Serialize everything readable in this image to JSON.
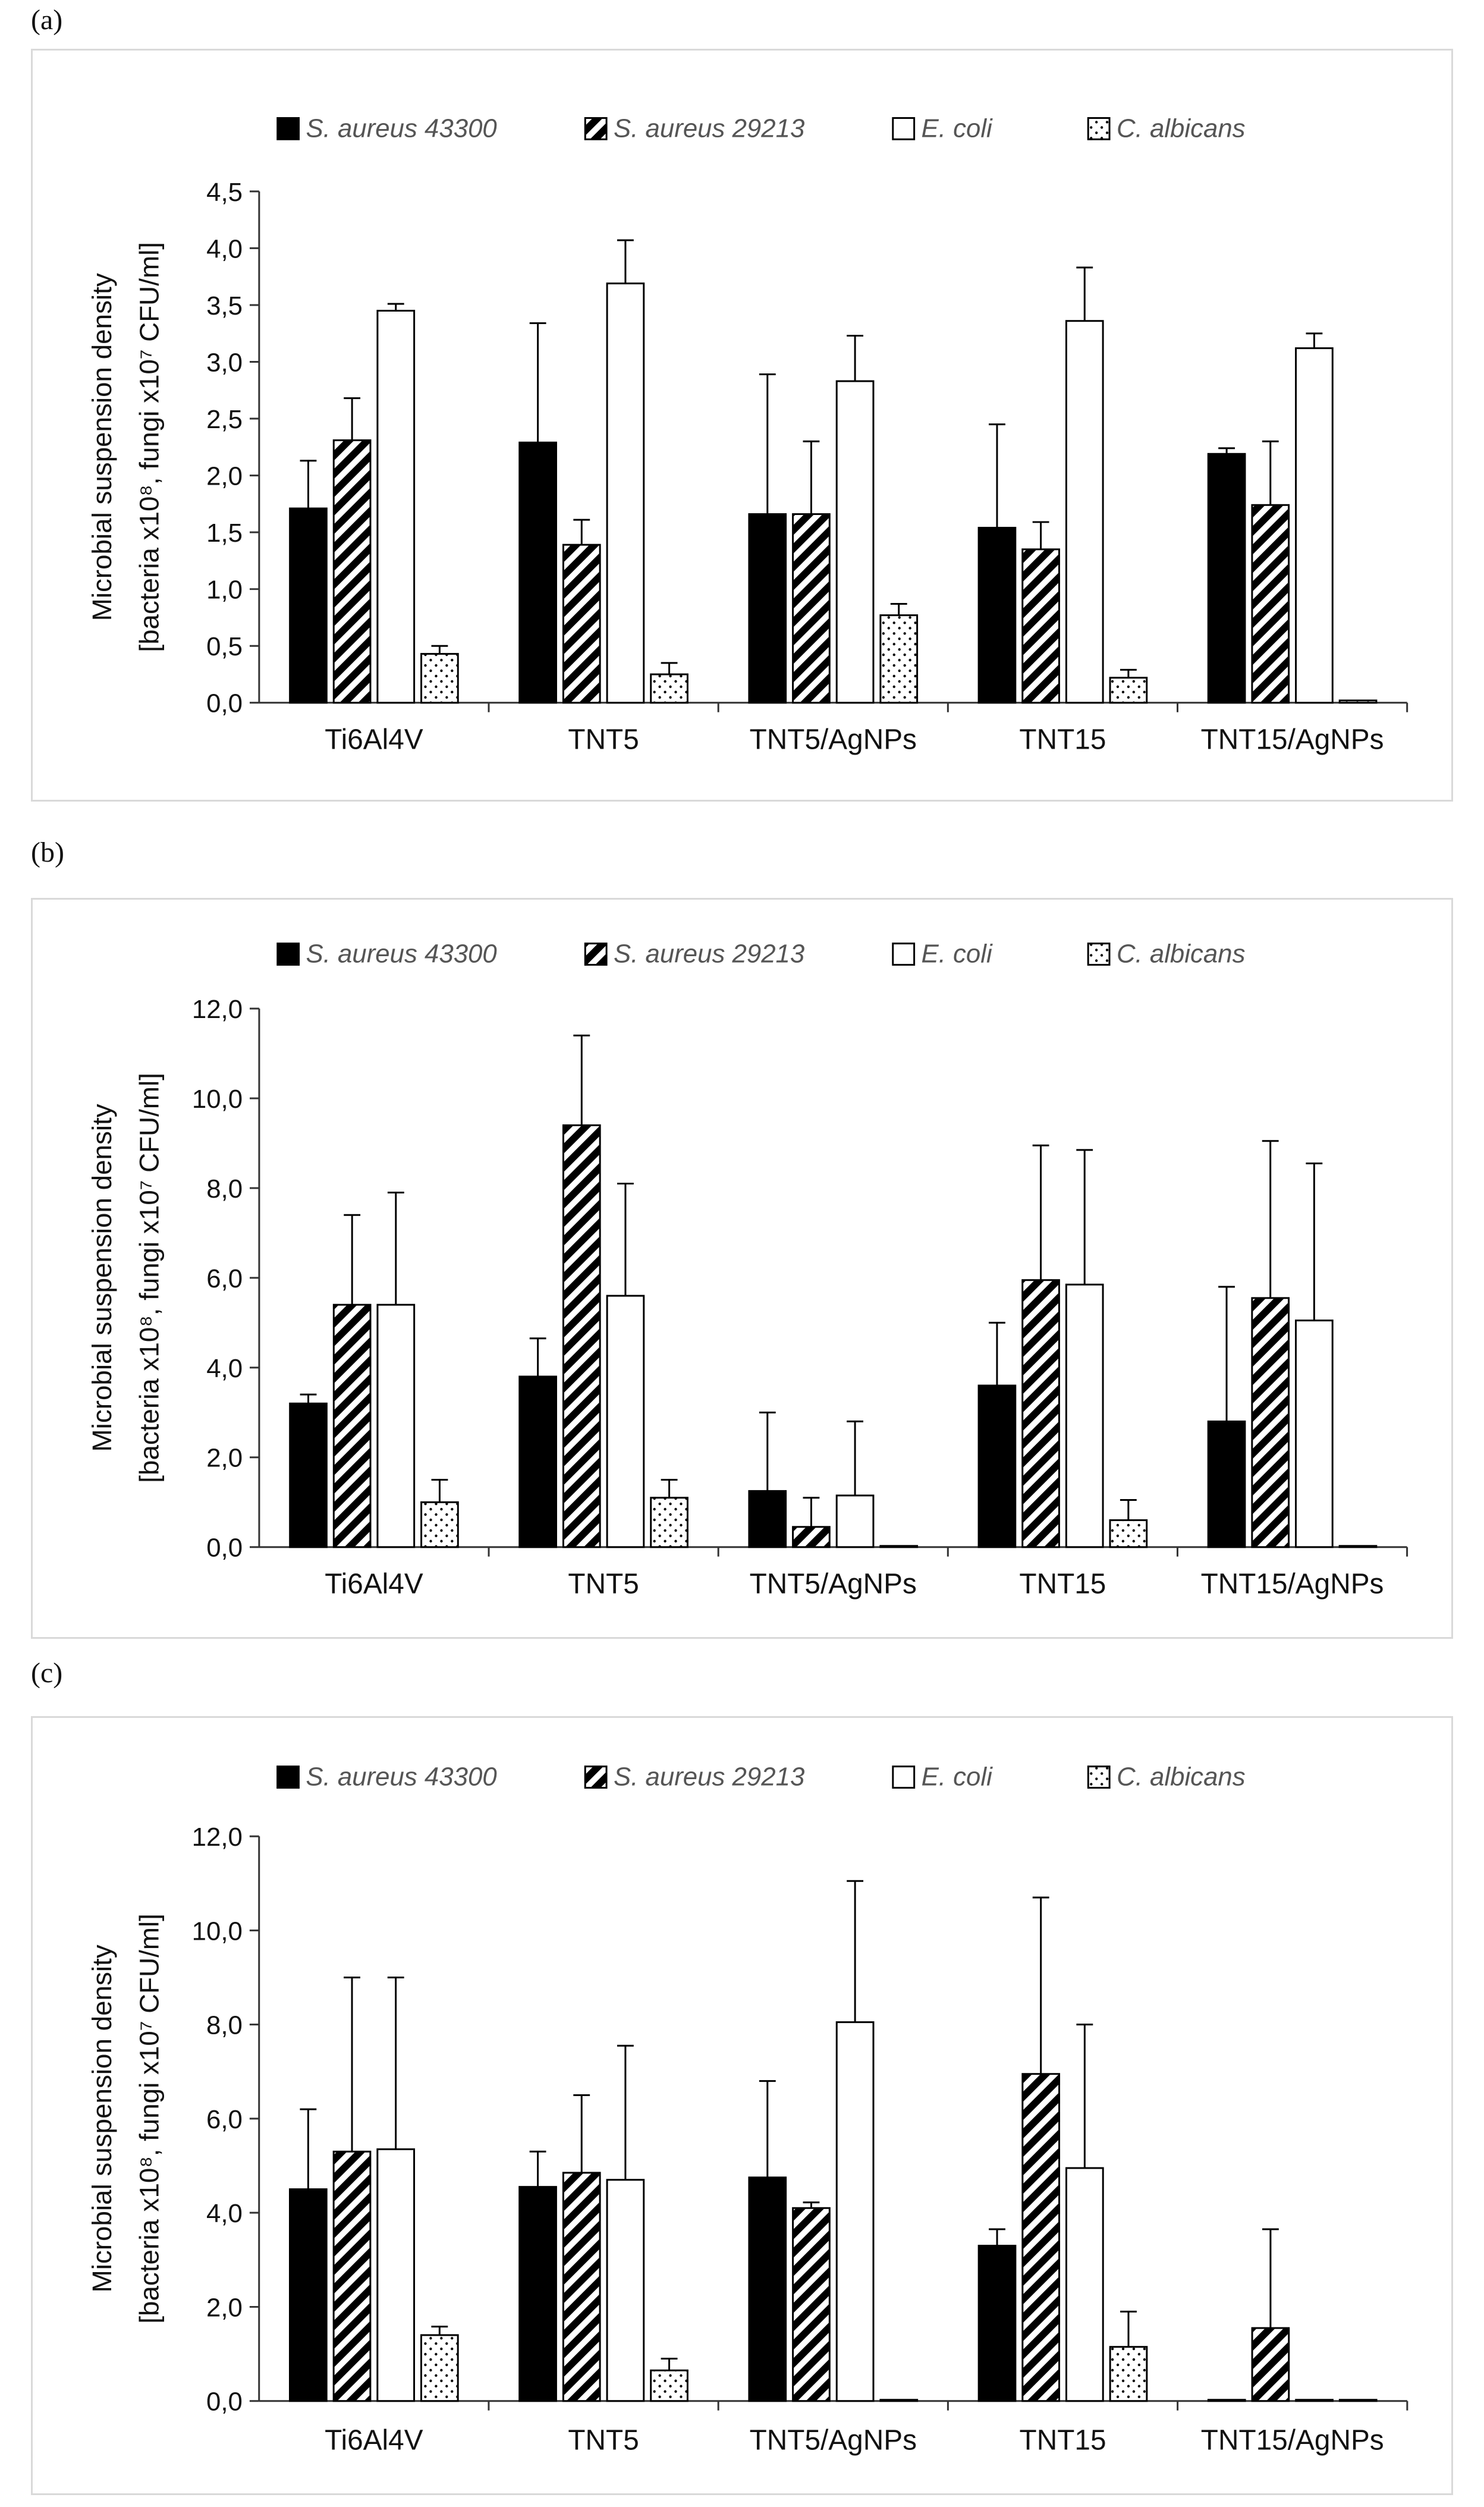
{
  "chart_data": [
    {
      "panel_label": "(a)",
      "type": "bar",
      "ylabel_line1": "Microbial suspension density",
      "ylabel_line2": "[bacteria x10⁸, fungi x10⁷ CFU/ml]",
      "ylim": [
        0,
        4.5
      ],
      "yticks": [
        "0,0",
        "0,5",
        "1,0",
        "1,5",
        "2,0",
        "2,5",
        "3,0",
        "3,5",
        "4,0",
        "4,5"
      ],
      "categories": [
        "Ti6Al4V",
        "TNT5",
        "TNT5/AgNPs",
        "TNT15",
        "TNT15/AgNPs"
      ],
      "legend_position": "top",
      "grid": false,
      "series": [
        {
          "name": "S. aureus 43300",
          "pattern": "solid-black",
          "values": [
            1.71,
            2.29,
            1.66,
            1.54,
            2.19
          ],
          "errors": [
            0.42,
            1.05,
            1.23,
            0.91,
            0.05
          ]
        },
        {
          "name": "S. aureus 29213",
          "pattern": "diagonal-stripes",
          "values": [
            2.31,
            1.39,
            1.66,
            1.35,
            1.74
          ],
          "errors": [
            0.37,
            0.22,
            0.64,
            0.24,
            0.56
          ]
        },
        {
          "name": "E. coli",
          "pattern": "white",
          "values": [
            3.45,
            3.69,
            2.83,
            3.36,
            3.12
          ],
          "errors": [
            0.06,
            0.38,
            0.4,
            0.47,
            0.13
          ]
        },
        {
          "name": "C. albicans",
          "pattern": "dots",
          "values": [
            0.43,
            0.25,
            0.77,
            0.22,
            0.02
          ],
          "errors": [
            0.07,
            0.1,
            0.1,
            0.07,
            0.0
          ]
        }
      ]
    },
    {
      "panel_label": "(b)",
      "type": "bar",
      "ylabel_line1": "Microbial suspension density",
      "ylabel_line2": "[bacteria x10⁸, fungi x10⁷ CFU/ml]",
      "ylim": [
        0,
        12
      ],
      "yticks": [
        "0,0",
        "2,0",
        "4,0",
        "6,0",
        "8,0",
        "10,0",
        "12,0"
      ],
      "categories": [
        "Ti6Al4V",
        "TNT5",
        "TNT5/AgNPs",
        "TNT15",
        "TNT15/AgNPs"
      ],
      "legend_position": "top",
      "grid": false,
      "series": [
        {
          "name": "S. aureus 43300",
          "pattern": "solid-black",
          "values": [
            3.2,
            3.8,
            1.25,
            3.6,
            2.8
          ],
          "errors": [
            0.2,
            0.85,
            1.75,
            1.4,
            3.0
          ]
        },
        {
          "name": "S. aureus 29213",
          "pattern": "diagonal-stripes",
          "values": [
            5.4,
            9.4,
            0.45,
            5.95,
            5.55
          ],
          "errors": [
            2.0,
            2.0,
            0.65,
            3.0,
            3.5
          ]
        },
        {
          "name": "E. coli",
          "pattern": "white",
          "values": [
            5.4,
            5.6,
            1.15,
            5.85,
            5.05
          ],
          "errors": [
            2.5,
            2.5,
            1.65,
            3.0,
            3.5
          ]
        },
        {
          "name": "C. albicans",
          "pattern": "dots",
          "values": [
            1.0,
            1.1,
            0.02,
            0.6,
            0.02
          ],
          "errors": [
            0.5,
            0.4,
            0.0,
            0.45,
            0.0
          ]
        }
      ]
    },
    {
      "panel_label": "(c)",
      "type": "bar",
      "ylabel_line1": "Microbial suspension density",
      "ylabel_line2": "[bacteria x10⁸, fungi x10⁷ CFU/ml]",
      "ylim": [
        0,
        12
      ],
      "yticks": [
        "0,0",
        "2,0",
        "4,0",
        "6,0",
        "8,0",
        "10,0",
        "12,0"
      ],
      "categories": [
        "Ti6Al4V",
        "TNT5",
        "TNT5/AgNPs",
        "TNT15",
        "TNT15/AgNPs"
      ],
      "legend_position": "top",
      "grid": false,
      "series": [
        {
          "name": "S. aureus 43300",
          "pattern": "solid-black",
          "values": [
            4.5,
            4.55,
            4.75,
            3.3,
            0.02
          ],
          "errors": [
            1.7,
            0.75,
            2.05,
            0.35,
            0.0
          ]
        },
        {
          "name": "S. aureus 29213",
          "pattern": "diagonal-stripes",
          "values": [
            5.3,
            4.85,
            4.1,
            6.95,
            1.55
          ],
          "errors": [
            3.7,
            1.65,
            0.12,
            3.75,
            2.1
          ]
        },
        {
          "name": "E. coli",
          "pattern": "white",
          "values": [
            5.35,
            4.7,
            8.05,
            4.95,
            0.02
          ],
          "errors": [
            3.65,
            2.85,
            3.0,
            3.05,
            0.0
          ]
        },
        {
          "name": "C. albicans",
          "pattern": "dots",
          "values": [
            1.4,
            0.65,
            0.0,
            1.15,
            0.02
          ],
          "errors": [
            0.18,
            0.25,
            0.0,
            0.75,
            0.0
          ]
        }
      ]
    }
  ]
}
